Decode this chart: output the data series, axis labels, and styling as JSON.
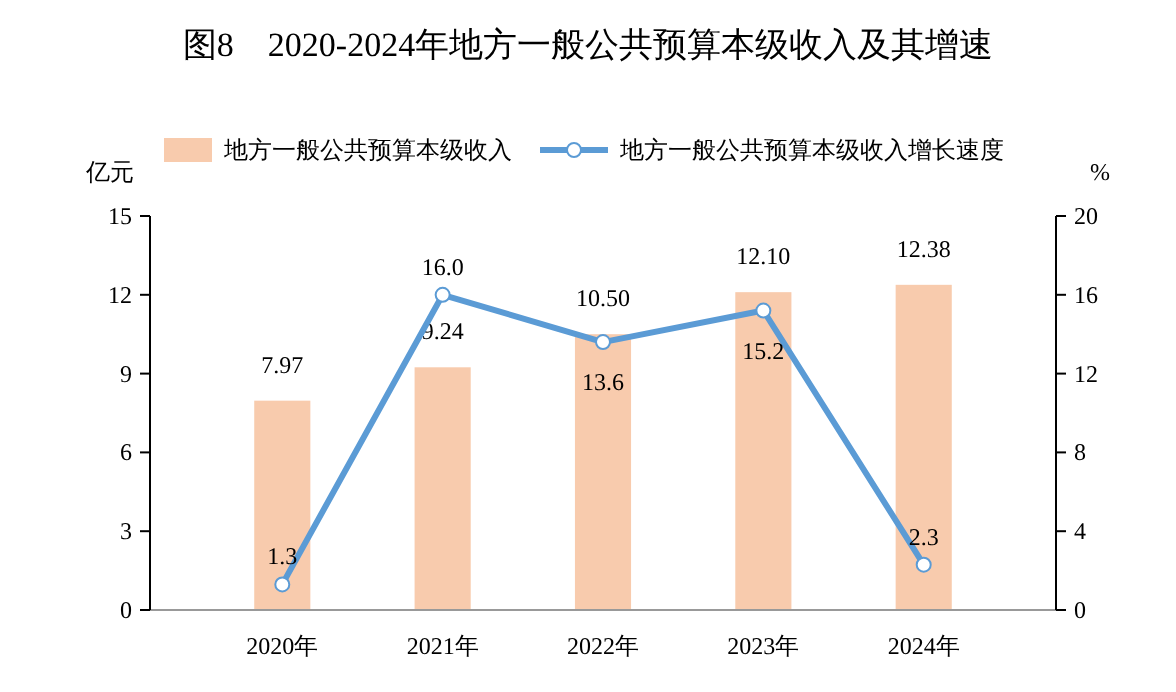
{
  "chart_data": {
    "type": "bar",
    "title": "图8　2020-2024年地方一般公共预算本级收入及其增速",
    "categories": [
      "2020年",
      "2021年",
      "2022年",
      "2023年",
      "2024年"
    ],
    "series": [
      {
        "name": "地方一般公共预算本级收入",
        "color": "#f8cbad",
        "values": [
          7.97,
          9.24,
          10.5,
          12.1,
          12.38
        ],
        "value_labels": [
          "7.97",
          "9.24",
          "10.50",
          "12.10",
          "12.38"
        ]
      },
      {
        "name": "地方一般公共预算本级收入增长速度",
        "type": "line",
        "axis": "y2",
        "color": "#5b9bd5",
        "marker": "circle",
        "values": [
          1.3,
          16.0,
          13.6,
          15.2,
          2.3
        ],
        "value_labels": [
          "1.3",
          "16.0",
          "13.6",
          "15.2",
          "2.3"
        ]
      }
    ],
    "ylabel": "亿元",
    "y2label": "%",
    "ylim": [
      0,
      15
    ],
    "yticks": [
      0,
      3,
      6,
      9,
      12,
      15
    ],
    "y2lim": [
      0,
      20
    ],
    "y2ticks": [
      0,
      4,
      8,
      12,
      16,
      20
    ],
    "grid": false,
    "legend": "top"
  }
}
